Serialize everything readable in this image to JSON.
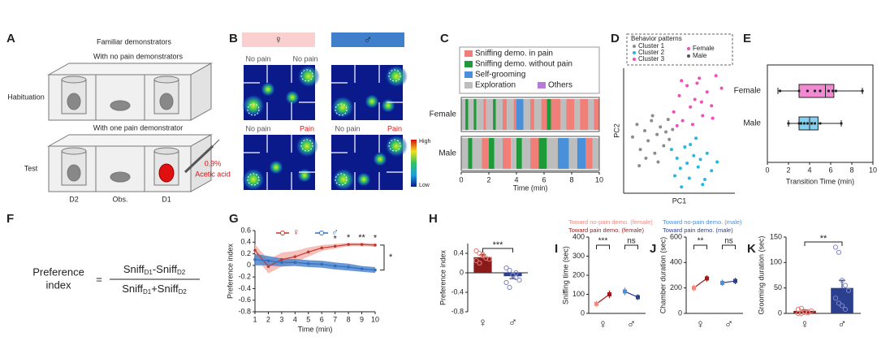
{
  "panel_labels": [
    "A",
    "B",
    "C",
    "D",
    "E",
    "F",
    "G",
    "H",
    "I",
    "J",
    "K"
  ],
  "schematic": {
    "title": "Familiar demonstrators",
    "habituation_condition": "With no pain demonstrators",
    "habituation_label": "Habituation",
    "test_condition": "With one pain demonstrator",
    "test_label": "Test",
    "injection": [
      "0.9%",
      "Acetic acid"
    ],
    "positions": [
      "D2",
      "Obs.",
      "D1"
    ]
  },
  "heatmaps": {
    "sexes": [
      "♀",
      "♂"
    ],
    "top_labels": [
      "No pain",
      "No pain"
    ],
    "bottom_labels": [
      "No pain",
      "Pain"
    ],
    "colorbar": [
      "High",
      "Low"
    ]
  },
  "formula": {
    "lhs": [
      "Preference",
      "index"
    ],
    "equals": "=",
    "numerator": [
      "Sniff",
      "D1",
      "-Sniff",
      "D2"
    ],
    "denominator": [
      "Sniff",
      "D1",
      "+Sniff",
      "D2"
    ]
  },
  "chart_data": [
    {
      "type": "timeline",
      "behaviors": [
        {
          "name": "Sniffing demo. in pain",
          "color": "#f07f7a"
        },
        {
          "name": "Sniffing demo. without pain",
          "color": "#1f9a3a"
        },
        {
          "name": "Self-grooming",
          "color": "#4a8fd9"
        },
        {
          "name": "Exploration",
          "color": "#bdbdbd"
        },
        {
          "name": "Others",
          "color": "#b57bd6"
        }
      ],
      "rows": [
        {
          "name": "Female",
          "bouts": [
            [
              0,
              0.3,
              3
            ],
            [
              0.3,
              0.5,
              1
            ],
            [
              0.5,
              0.9,
              3
            ],
            [
              0.9,
              1.1,
              1
            ],
            [
              1.1,
              1.6,
              3
            ],
            [
              1.6,
              1.8,
              0
            ],
            [
              1.8,
              2.3,
              3
            ],
            [
              2.3,
              2.5,
              1
            ],
            [
              2.5,
              3.0,
              3
            ],
            [
              3.0,
              3.3,
              0
            ],
            [
              3.3,
              3.8,
              3
            ],
            [
              3.8,
              4.0,
              0
            ],
            [
              4.0,
              4.5,
              2
            ],
            [
              4.5,
              5.0,
              3
            ],
            [
              5.0,
              5.3,
              0
            ],
            [
              5.3,
              5.8,
              3
            ],
            [
              5.8,
              6.2,
              0
            ],
            [
              6.2,
              6.5,
              1
            ],
            [
              6.5,
              7.2,
              0
            ],
            [
              7.2,
              7.6,
              3
            ],
            [
              7.6,
              8.2,
              0
            ],
            [
              8.2,
              8.6,
              3
            ],
            [
              8.6,
              9.2,
              0
            ],
            [
              9.2,
              9.6,
              3
            ],
            [
              9.6,
              10,
              0
            ]
          ]
        },
        {
          "name": "Male",
          "bouts": [
            [
              0,
              0.5,
              3
            ],
            [
              0.5,
              0.8,
              1
            ],
            [
              0.8,
              1.5,
              3
            ],
            [
              1.5,
              2.0,
              0
            ],
            [
              2.0,
              2.4,
              1
            ],
            [
              2.4,
              3.0,
              3
            ],
            [
              3.0,
              3.6,
              0
            ],
            [
              3.6,
              4.0,
              3
            ],
            [
              4.0,
              4.4,
              1
            ],
            [
              4.4,
              5.0,
              3
            ],
            [
              5.0,
              5.6,
              0
            ],
            [
              5.6,
              6.2,
              1
            ],
            [
              6.2,
              7.0,
              3
            ],
            [
              7.0,
              7.8,
              2
            ],
            [
              7.8,
              8.4,
              3
            ],
            [
              8.4,
              9.0,
              2
            ],
            [
              9.0,
              9.5,
              0
            ],
            [
              9.5,
              10,
              3
            ]
          ]
        }
      ],
      "xlim": [
        0,
        10
      ],
      "xticks": [
        0,
        2,
        4,
        6,
        8,
        10
      ],
      "xlabel": "Time (min)"
    },
    {
      "type": "scatter",
      "legend_title": "Behavior patterns",
      "series": [
        {
          "name": "Cluster 1",
          "color": "#8c8c8c",
          "x": [
            -3.2,
            -2.8,
            -2.5,
            -2.1,
            -1.8,
            -1.5,
            -1.2,
            -1.0,
            -0.7,
            -0.4,
            -0.2,
            0.1,
            0.4,
            -2.0,
            -1.4,
            -0.9,
            -2.6,
            0.0
          ],
          "y": [
            0.5,
            1.5,
            -0.5,
            1.0,
            0.2,
            1.8,
            -0.8,
            0.7,
            1.3,
            -0.2,
            0.9,
            0.3,
            1.1,
            -1.2,
            2.2,
            -1.5,
            -1.8,
            1.9
          ]
        },
        {
          "name": "Cluster 2",
          "color": "#29b6e0",
          "x": [
            0.3,
            0.8,
            1.1,
            1.5,
            1.9,
            2.3,
            2.7,
            3.1,
            3.5,
            3.9,
            1.2,
            2.0,
            2.9,
            0.6,
            1.7,
            3.3,
            2.5,
            4.4
          ],
          "y": [
            -0.5,
            -1.2,
            -2.0,
            -0.3,
            -2.8,
            -1.0,
            -1.9,
            -3.3,
            -0.8,
            -2.2,
            -3.5,
            -0.1,
            -1.3,
            -2.6,
            -1.6,
            -2.9,
            0.4,
            -1.5
          ]
        },
        {
          "name": "Cluster 3",
          "color": "#f04fb5",
          "x": [
            0.5,
            1.0,
            1.3,
            1.7,
            2.0,
            2.4,
            2.8,
            3.1,
            3.5,
            3.9,
            4.3,
            4.8,
            1.2,
            2.2,
            3.0,
            0.8,
            2.6,
            4.0
          ],
          "y": [
            2.5,
            3.8,
            1.8,
            4.6,
            2.9,
            3.5,
            5.2,
            2.2,
            4.1,
            3.0,
            5.4,
            4.4,
            5.0,
            1.5,
            3.3,
            1.4,
            4.8,
            2.0
          ]
        }
      ],
      "sex_legend": [
        {
          "name": "Female",
          "color": "#f04fb5"
        },
        {
          "name": "Male",
          "color": "#555555"
        }
      ],
      "xlim": [
        -4,
        6
      ],
      "ylim": [
        -4,
        6
      ],
      "xlabel": "PC1",
      "ylabel": "PC2"
    },
    {
      "type": "box",
      "categories": [
        "Female",
        "Male"
      ],
      "colors": [
        "#f28ad1",
        "#86d0ef"
      ],
      "boxes": [
        {
          "whislo": 1,
          "q1": 3,
          "med": 5.5,
          "q3": 6.3,
          "whishi": 9,
          "points": [
            1.2,
            3.0,
            3.8,
            4.5,
            5.0,
            5.8,
            6.2,
            6.5,
            9.0
          ]
        },
        {
          "whislo": 2,
          "q1": 3,
          "med": 4,
          "q3": 4.8,
          "whishi": 7,
          "points": [
            2.0,
            3.0,
            3.2,
            3.5,
            3.8,
            4.2,
            4.5,
            5.0,
            7.0
          ]
        }
      ],
      "xlim": [
        0,
        10
      ],
      "xticks": [
        0,
        2,
        4,
        6,
        8,
        10
      ],
      "xlabel": "Transition Time  (min)"
    },
    {
      "type": "line",
      "x": [
        1,
        2,
        3,
        4,
        5,
        6,
        7,
        8,
        9,
        10
      ],
      "series": [
        {
          "name": "♀",
          "color": "#c0392b",
          "band": "#f4b6b0",
          "values": [
            0.26,
            -0.02,
            0.1,
            0.15,
            0.23,
            0.3,
            0.33,
            0.36,
            0.36,
            0.35
          ],
          "errors": [
            0.1,
            0.12,
            0.12,
            0.1,
            0.08,
            0.05,
            0.04,
            0.03,
            0.03,
            0.03
          ]
        },
        {
          "name": "♂",
          "color": "#2f6fbf",
          "band": "#4f86cc",
          "values": [
            0.1,
            0.08,
            0.05,
            0.05,
            0.03,
            0.02,
            -0.01,
            -0.03,
            -0.06,
            -0.08
          ],
          "errors": [
            0.1,
            0.08,
            0.07,
            0.06,
            0.06,
            0.06,
            0.06,
            0.06,
            0.05,
            0.05
          ]
        }
      ],
      "xlim": [
        1,
        10
      ],
      "xticks": [
        1,
        2,
        3,
        4,
        5,
        6,
        7,
        8,
        9,
        10
      ],
      "ylim": [
        -0.8,
        0.6
      ],
      "yticks": [
        -0.8,
        -0.6,
        -0.4,
        -0.2,
        0,
        0.2,
        0.4,
        0.6
      ],
      "xlabel": "Time (min)",
      "ylabel": "Preference index",
      "significance": [
        {
          "x": 7,
          "text": "*"
        },
        {
          "x": 8,
          "text": "*"
        },
        {
          "x": 9,
          "text": "**"
        },
        {
          "x": 10,
          "text": "*"
        }
      ],
      "overall_significance": "*"
    },
    {
      "type": "bar",
      "categories": [
        "♀",
        "♂"
      ],
      "colors": [
        "#8b1a1a",
        "#2b3f8f"
      ],
      "point_colors": [
        "#e07b73",
        "#7d86c7"
      ],
      "values": [
        0.32,
        -0.07
      ],
      "errors": [
        0.05,
        0.05
      ],
      "points": [
        [
          0.45,
          0.4,
          0.35,
          0.3,
          0.28,
          0.25,
          0.2,
          0.38
        ],
        [
          0.1,
          0.05,
          -0.05,
          -0.1,
          -0.15,
          -0.2,
          -0.3,
          -0.05,
          0.0
        ]
      ],
      "ylim": [
        -0.8,
        0.6
      ],
      "yticks": [
        -0.8,
        -0.4,
        0,
        0.4
      ],
      "ylabel": "Preference index",
      "significance": "***"
    },
    {
      "type": "paired",
      "categories": [
        "♀",
        "♂"
      ],
      "category_colors": [
        [
          "#f08a80",
          "#9b1c1c"
        ],
        [
          "#4a8fd9",
          "#2b3f8f"
        ]
      ],
      "series": [
        {
          "name": "Toward no-pain demo. (female)",
          "color": "#f08a80",
          "values": [
            50,
            115
          ],
          "errors": [
            15,
            20
          ]
        },
        {
          "name": "Toward pain demo. (female)",
          "color": "#9b1c1c",
          "values": [
            100,
            85
          ],
          "errors": [
            20,
            15
          ]
        }
      ],
      "ylim": [
        0,
        400
      ],
      "yticks": [
        0,
        100,
        200,
        300,
        400
      ],
      "ylabel": "Sniffing time (sec)",
      "significance": [
        "***",
        "ns"
      ]
    },
    {
      "type": "paired",
      "categories": [
        "♀",
        "♂"
      ],
      "category_colors": [
        [
          "#f08a80",
          "#9b1c1c"
        ],
        [
          "#4a8fd9",
          "#2b3f8f"
        ]
      ],
      "series": [
        {
          "name": "Toward  no-pain demo. (male)",
          "color": "#4a8fd9",
          "values": [
            200,
            240
          ],
          "errors": [
            25,
            25
          ]
        },
        {
          "name": "Toward  pain demo. (male)",
          "color": "#2b3f8f",
          "values": [
            275,
            255
          ],
          "errors": [
            25,
            25
          ]
        }
      ],
      "ylim": [
        0,
        600
      ],
      "yticks": [
        0,
        200,
        400,
        600
      ],
      "ylabel": "Chamber duration (sec)",
      "significance": [
        "**",
        "ns"
      ]
    },
    {
      "type": "bar",
      "categories": [
        "♀",
        "♂"
      ],
      "colors": [
        "#9b1c1c",
        "#2b3f8f"
      ],
      "point_colors": [
        "#e07b73",
        "#7d86c7"
      ],
      "values": [
        5,
        50
      ],
      "errors": [
        2,
        15
      ],
      "points": [
        [
          0,
          0,
          2,
          3,
          5,
          8,
          10,
          4,
          1
        ],
        [
          130,
          120,
          65,
          55,
          45,
          30,
          20,
          15,
          8
        ]
      ],
      "ylim": [
        0,
        150
      ],
      "yticks": [
        0,
        50,
        100,
        150
      ],
      "ylabel": "Grooming duration (sec)",
      "significance": "**"
    }
  ]
}
